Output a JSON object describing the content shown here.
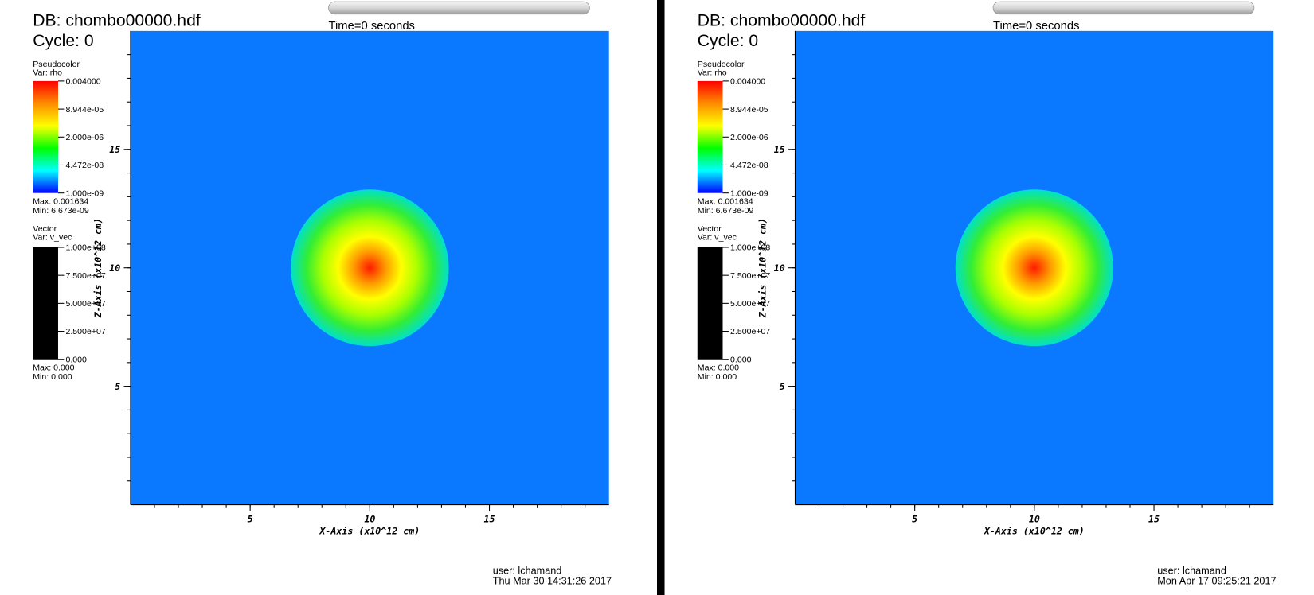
{
  "chart_data": [
    {
      "type": "pseudocolor",
      "db": "DB: chombo00000.hdf",
      "cycle": "Cycle: 0",
      "time": "Time:0",
      "time_slider": "Time=0 seconds",
      "pseudocolor_legend": {
        "title": "Pseudocolor",
        "var": "Var: rho",
        "log": true,
        "lim": [
          1e-09,
          0.004
        ],
        "colors": [
          "#ff0000",
          "#ff8c00",
          "#ffff00",
          "#00ff00",
          "#00ffff",
          "#0000ff"
        ],
        "ticks": [
          {
            "value": 0.004,
            "label": "0.004000"
          },
          {
            "value": 8.944e-05,
            "label": "8.944e-05"
          },
          {
            "value": 2e-06,
            "label": "2.000e-06"
          },
          {
            "value": 4.472e-08,
            "label": "4.472e-08"
          },
          {
            "value": 1e-09,
            "label": "1.000e-09"
          }
        ],
        "max": "Max:  0.001634",
        "min": "Min:  6.673e-09"
      },
      "vector_legend": {
        "title": "Vector",
        "var": "Var: v_vec",
        "lim": [
          0,
          100000000
        ],
        "color": "#000000",
        "ticks": [
          {
            "value": 100000000,
            "label": "1.000e+08"
          },
          {
            "value": 75000000,
            "label": "7.500e+07"
          },
          {
            "value": 50000000,
            "label": "5.000e+07"
          },
          {
            "value": 25000000,
            "label": "2.500e+07"
          },
          {
            "value": 0,
            "label": "0.000"
          }
        ],
        "max": "Max:  0.000",
        "min": "Min:  0.000"
      },
      "xlabel": "X-Axis (x10^12 cm)",
      "ylabel": "Z-Axis (x10^12 cm)",
      "xlim": [
        0,
        20
      ],
      "ylim": [
        0,
        20
      ],
      "xticks": [
        5,
        10,
        15
      ],
      "yticks": [
        5,
        10,
        15
      ],
      "field": {
        "background": "#0a78ff",
        "center": [
          10,
          10
        ],
        "radius": 3.3,
        "colors": [
          "#ff1a00",
          "#ff9900",
          "#ffff00",
          "#aaff00",
          "#33ee33",
          "#00e0cc"
        ]
      },
      "user": "user: lchamand",
      "date": "Thu Mar 30 14:31:26 2017"
    },
    {
      "type": "pseudocolor",
      "db": "DB: chombo00000.hdf",
      "cycle": "Cycle: 0",
      "time": "Time:0",
      "time_slider": "Time=0 seconds",
      "pseudocolor_legend": {
        "title": "Pseudocolor",
        "var": "Var: rho",
        "log": true,
        "lim": [
          1e-09,
          0.004
        ],
        "colors": [
          "#ff0000",
          "#ff8c00",
          "#ffff00",
          "#00ff00",
          "#00ffff",
          "#0000ff"
        ],
        "ticks": [
          {
            "value": 0.004,
            "label": "0.004000"
          },
          {
            "value": 8.944e-05,
            "label": "8.944e-05"
          },
          {
            "value": 2e-06,
            "label": "2.000e-06"
          },
          {
            "value": 4.472e-08,
            "label": "4.472e-08"
          },
          {
            "value": 1e-09,
            "label": "1.000e-09"
          }
        ],
        "max": "Max:  0.001634",
        "min": "Min:  6.673e-09"
      },
      "vector_legend": {
        "title": "Vector",
        "var": "Var: v_vec",
        "lim": [
          0,
          100000000
        ],
        "color": "#000000",
        "ticks": [
          {
            "value": 100000000,
            "label": "1.000e+08"
          },
          {
            "value": 75000000,
            "label": "7.500e+07"
          },
          {
            "value": 50000000,
            "label": "5.000e+07"
          },
          {
            "value": 25000000,
            "label": "2.500e+07"
          },
          {
            "value": 0,
            "label": "0.000"
          }
        ],
        "max": "Max:  0.000",
        "min": "Min:  0.000"
      },
      "xlabel": "X-Axis (x10^12 cm)",
      "ylabel": "Z-Axis (x10^12 cm)",
      "xlim": [
        0,
        20
      ],
      "ylim": [
        0,
        20
      ],
      "xticks": [
        5,
        10,
        15
      ],
      "yticks": [
        5,
        10,
        15
      ],
      "field": {
        "background": "#0a78ff",
        "center": [
          10,
          10
        ],
        "radius": 3.3,
        "colors": [
          "#ff1a00",
          "#ff9900",
          "#ffff00",
          "#aaff00",
          "#33ee33",
          "#00e0cc"
        ]
      },
      "user": "user: lchamand",
      "date": "Mon Apr 17 09:25:21 2017"
    }
  ]
}
